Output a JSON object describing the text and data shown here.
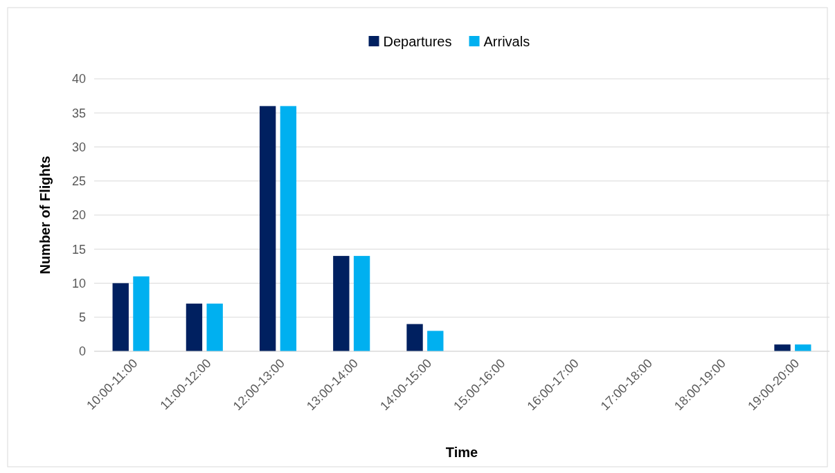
{
  "chart_data": {
    "type": "bar",
    "xlabel": "Time",
    "ylabel": "Number of Flights",
    "categories": [
      "10:00-11:00",
      "11:00-12:00",
      "12:00-13:00",
      "13:00-14:00",
      "14:00-15:00",
      "15:00-16:00",
      "16:00-17:00",
      "17:00-18:00",
      "18:00-19:00",
      "19:00-20:00"
    ],
    "series": [
      {
        "name": "Departures",
        "color": "#002060",
        "values": [
          10,
          7,
          36,
          14,
          4,
          0,
          0,
          0,
          0,
          1
        ]
      },
      {
        "name": "Arrivals",
        "color": "#00b0f0",
        "values": [
          11,
          7,
          36,
          14,
          3,
          0,
          0,
          0,
          0,
          1
        ]
      }
    ],
    "ylim": [
      0,
      40
    ],
    "yticks": [
      0,
      5,
      10,
      15,
      20,
      25,
      30,
      35,
      40
    ],
    "grid": "y",
    "legend": "top"
  }
}
